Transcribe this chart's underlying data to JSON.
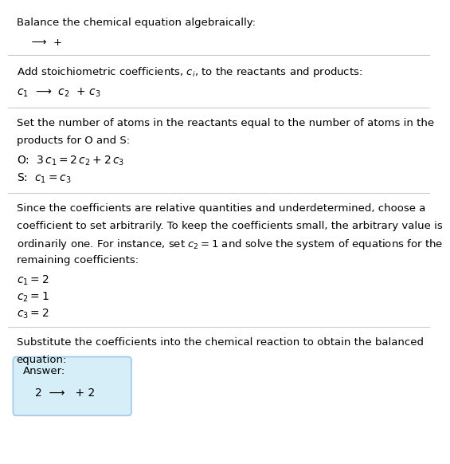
{
  "title": "Balance the chemical equation algebraically:",
  "line1": "  ⟶  +  ",
  "section1_header": "Add stoichiometric coefficients, $c_i$, to the reactants and products:",
  "section1_body": "$c_1$  ⟶  $c_2$  + $c_3$",
  "section2_header_1": "Set the number of atoms in the reactants equal to the number of atoms in the",
  "section2_header_2": "products for O and S:",
  "section2_O": "O:  $3\\,c_1 = 2\\,c_2 + 2\\,c_3$",
  "section2_S": "S:  $c_1 = c_3$",
  "section3_header_1": "Since the coefficients are relative quantities and underdetermined, choose a",
  "section3_header_2": "coefficient to set arbitrarily. To keep the coefficients small, the arbitrary value is",
  "section3_header_3": "ordinarily one. For instance, set $c_2 = 1$ and solve the system of equations for the",
  "section3_header_4": "remaining coefficients:",
  "section3_c1": "$c_1 = 2$",
  "section3_c2": "$c_2 = 1$",
  "section3_c3": "$c_3 = 2$",
  "section4_header_1": "Substitute the coefficients into the chemical reaction to obtain the balanced",
  "section4_header_2": "equation:",
  "answer_label": "Answer:",
  "answer_body": "2  ⟶   + 2",
  "bg_color": "#ffffff",
  "box_color": "#d6eef8",
  "box_edge_color": "#a0c8e8",
  "text_color": "#000000",
  "separator_color": "#cccccc"
}
